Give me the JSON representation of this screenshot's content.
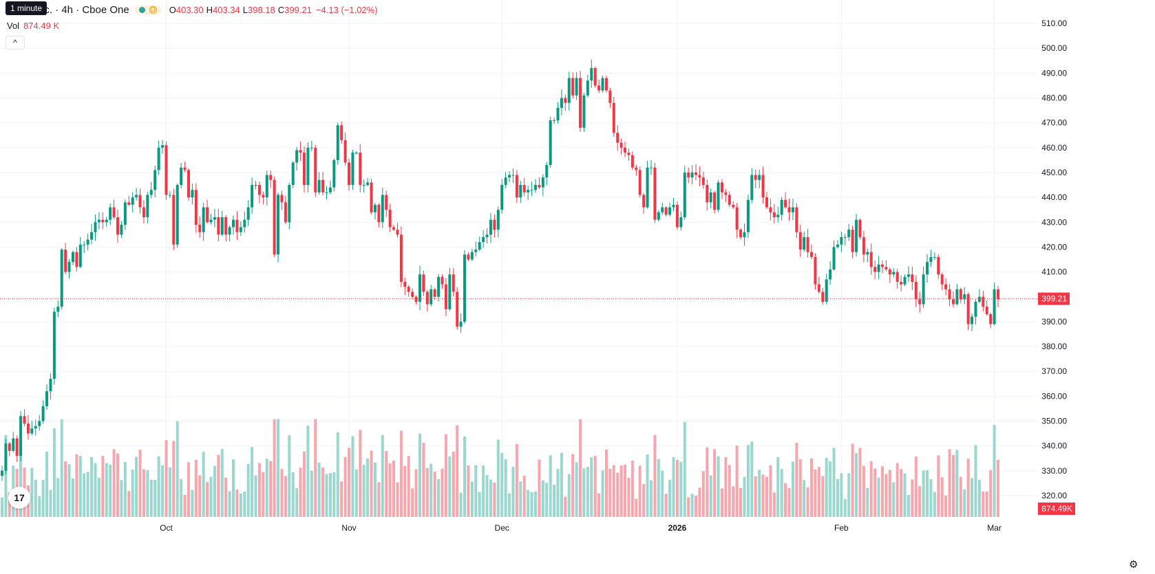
{
  "legend": {
    "tooltip": "1 minute",
    "symbol": "nc. · 4h · Cboe One",
    "badge_letter": "D",
    "open_key": "O",
    "open": "403.30",
    "high_key": "H",
    "high": "403.34",
    "low_key": "L",
    "low": "398.18",
    "close_key": "C",
    "close": "399.21",
    "change": "−4.13 (−1.02%)",
    "vol_key": "Vol",
    "vol_value": "874.49 K",
    "collapse_icon": "chevron-up-icon"
  },
  "colors": {
    "up": "#089981",
    "down": "#f23645",
    "vol_up": "#9ad7cf",
    "vol_down": "#f8a6ad",
    "grid": "#f0f3fa"
  },
  "axis": {
    "price_label": "399.21",
    "volume_label": "874.49K"
  },
  "chart_data": {
    "type": "candlestick",
    "y_ticks": [
      510,
      500,
      490,
      480,
      470,
      460,
      450,
      440,
      430,
      420,
      410,
      400,
      390,
      380,
      370,
      360,
      350,
      340,
      330,
      320
    ],
    "y_tick_labels": [
      "510.00",
      "500.00",
      "490.00",
      "480.00",
      "470.00",
      "460.00",
      "450.00",
      "440.00",
      "430.00",
      "420.00",
      "410.00",
      "",
      "390.00",
      "380.00",
      "370.00",
      "360.00",
      "350.00",
      "340.00",
      "330.00",
      "320.00"
    ],
    "ylim": [
      314,
      515
    ],
    "x_labels": [
      {
        "label": "Oct",
        "bar": 44,
        "bold": false
      },
      {
        "label": "Nov",
        "bar": 93,
        "bold": false
      },
      {
        "label": "Dec",
        "bar": 134,
        "bold": false
      },
      {
        "label": "2026",
        "bar": 181,
        "bold": true
      },
      {
        "label": "Feb",
        "bar": 225,
        "bold": false
      },
      {
        "label": "Mar",
        "bar": 266,
        "bold": false
      }
    ],
    "last_price": 399.21,
    "closes": [
      330,
      341,
      338,
      343,
      336,
      352,
      349,
      345,
      347,
      348,
      350,
      356,
      362,
      367,
      394,
      396,
      419,
      410,
      414,
      418,
      412,
      421,
      421,
      423,
      426,
      430,
      431,
      430,
      431,
      436,
      432,
      425,
      429,
      438,
      437,
      440,
      441,
      436,
      432,
      441,
      443,
      451,
      460,
      461,
      441,
      441,
      421,
      445,
      452,
      451,
      440,
      443,
      429,
      426,
      436,
      430,
      431,
      432,
      425,
      432,
      425,
      428,
      431,
      426,
      428,
      431,
      436,
      445,
      445,
      441,
      440,
      449,
      447,
      417,
      441,
      438,
      430,
      445,
      454,
      459,
      458,
      445,
      460,
      460,
      442,
      447,
      442,
      442,
      444,
      455,
      469,
      463,
      454,
      445,
      458,
      458,
      445,
      445,
      446,
      434,
      437,
      430,
      441,
      435,
      428,
      427,
      425,
      406,
      404,
      402,
      400,
      398,
      409,
      402,
      397,
      403,
      400,
      408,
      405,
      395,
      409,
      402,
      388,
      390,
      417,
      415,
      418,
      419,
      422,
      424,
      425,
      431,
      427,
      435,
      445,
      448,
      449,
      449,
      440,
      445,
      442,
      443,
      443,
      445,
      444,
      448,
      453,
      471,
      471,
      476,
      480,
      478,
      488,
      481,
      488,
      468,
      481,
      487,
      492,
      485,
      483,
      488,
      483,
      478,
      466,
      462,
      460,
      458,
      457,
      452,
      451,
      441,
      436,
      452,
      452,
      431,
      434,
      436,
      433,
      436,
      437,
      428,
      432,
      450,
      448,
      450,
      449,
      448,
      445,
      438,
      442,
      435,
      446,
      442,
      441,
      437,
      436,
      427,
      424,
      426,
      439,
      449,
      447,
      449,
      440,
      436,
      434,
      432,
      433,
      439,
      436,
      434,
      436,
      426,
      419,
      424,
      418,
      416,
      405,
      402,
      398,
      407,
      411,
      420,
      421,
      424,
      424,
      427,
      418,
      431,
      424,
      417,
      418,
      412,
      410,
      413,
      412,
      411,
      409,
      410,
      406,
      405,
      408,
      409,
      406,
      399,
      397,
      409,
      414,
      416,
      416,
      409,
      405,
      403,
      399,
      397,
      403,
      399,
      401,
      389,
      392,
      398,
      400,
      396,
      393,
      389,
      403,
      399
    ]
  },
  "settings_icon": "gear-icon",
  "logo_text": "17"
}
